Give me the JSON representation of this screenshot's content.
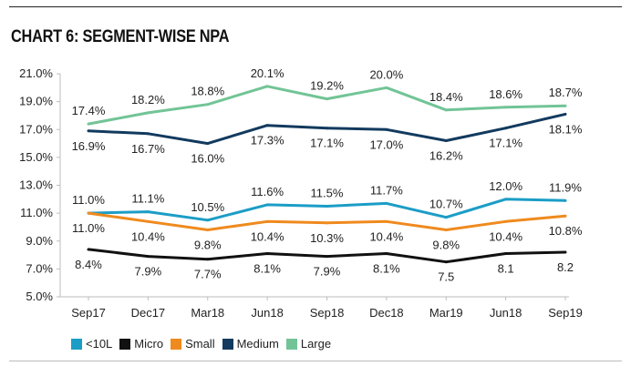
{
  "chart_data": {
    "type": "line",
    "title": "CHART 6: SEGMENT-WISE NPA",
    "xlabel": "",
    "ylabel": "",
    "categories": [
      "Sep17",
      "Dec17",
      "Mar18",
      "Jun18",
      "Sep18",
      "Dec18",
      "Mar19",
      "Jun18",
      "Sep19"
    ],
    "ylim": [
      5,
      21
    ],
    "yticks": [
      "5.0%",
      "7.0%",
      "9.0%",
      "11.0%",
      "13.0%",
      "15.0%",
      "17.0%",
      "19.0%",
      "21.0%"
    ],
    "grid": false,
    "legend_position": "bottom-left",
    "series": [
      {
        "name": "<10L",
        "color": "#1b9dc6",
        "values": [
          11.0,
          11.1,
          10.5,
          11.6,
          11.5,
          11.7,
          10.7,
          12.0,
          11.9
        ],
        "labels": [
          "11.0%",
          "11.1%",
          "10.5%",
          "11.6%",
          "11.5%",
          "11.7%",
          "10.7%",
          "12.0%",
          "11.9%"
        ],
        "label_pos": "above"
      },
      {
        "name": "Micro",
        "color": "#111111",
        "values": [
          8.4,
          7.9,
          7.7,
          8.1,
          7.9,
          8.1,
          7.5,
          8.1,
          8.2
        ],
        "labels": [
          "8.4%",
          "7.9%",
          "7.7%",
          "8.1%",
          "7.9%",
          "8.1%",
          "7.5",
          "8.1",
          "8.2"
        ],
        "label_pos": "below"
      },
      {
        "name": "Small",
        "color": "#ef8a1e",
        "values": [
          11.0,
          10.4,
          9.8,
          10.4,
          10.3,
          10.4,
          9.8,
          10.4,
          10.8
        ],
        "labels": [
          "11.0%",
          "10.4%",
          "9.8%",
          "10.4%",
          "10.3%",
          "10.4%",
          "9.8%",
          "10.4%",
          "10.8%"
        ],
        "label_pos": "below"
      },
      {
        "name": "Medium",
        "color": "#123a5e",
        "values": [
          16.9,
          16.7,
          16.0,
          17.3,
          17.1,
          17.0,
          16.2,
          17.1,
          18.1
        ],
        "labels": [
          "16.9%",
          "16.7%",
          "16.0%",
          "17.3%",
          "17.1%",
          "17.0%",
          "16.2%",
          "17.1%",
          "18.1%"
        ],
        "label_pos": "below"
      },
      {
        "name": "Large",
        "color": "#72c496",
        "values": [
          17.4,
          18.2,
          18.8,
          20.1,
          19.2,
          20.0,
          18.4,
          18.6,
          18.7
        ],
        "labels": [
          "17.4%",
          "18.2%",
          "18.8%",
          "20.1%",
          "19.2%",
          "20.0%",
          "18.4%",
          "18.6%",
          "18.7%"
        ],
        "label_pos": "above"
      }
    ]
  }
}
